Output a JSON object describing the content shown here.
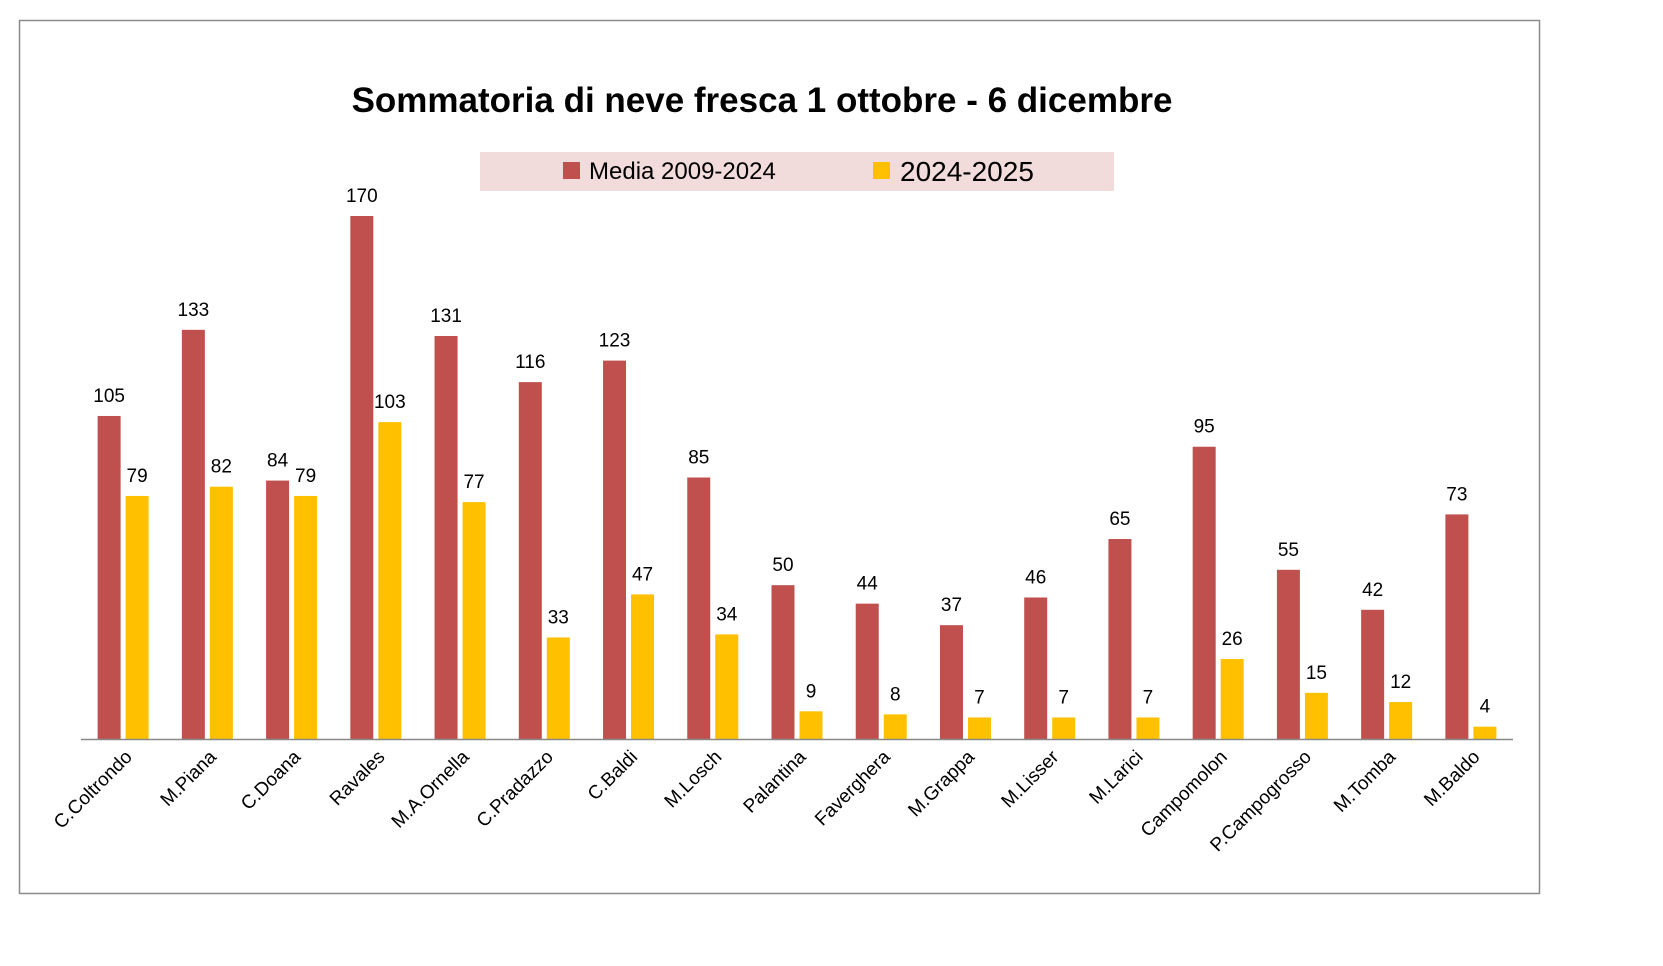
{
  "chart_data": {
    "type": "bar",
    "title": "Sommatoria di neve fresca 1 ottobre - 6 dicembre",
    "xlabel": "",
    "ylabel": "",
    "ylim": [
      0,
      170
    ],
    "grid": false,
    "legend_position": "top-center",
    "categories": [
      "C.Coltrondo",
      "M.Piana",
      "C.Doana",
      "Ravales",
      "M.A.Ornella",
      "C.Pradazzo",
      "C.Baldi",
      "M.Losch",
      "Palantina",
      "Faverghera",
      "M.Grappa",
      "M.Lisser",
      "M.Larici",
      "Campomolon",
      "P.Campogrosso",
      "M.Tomba",
      "M.Baldo"
    ],
    "series": [
      {
        "name": "Media 2009-2024",
        "color": "#c0504d",
        "values": [
          105,
          133,
          84,
          170,
          131,
          116,
          123,
          85,
          50,
          44,
          37,
          46,
          65,
          95,
          55,
          42,
          73
        ]
      },
      {
        "name": "2024-2025",
        "color": "#ffc000",
        "values": [
          79,
          82,
          79,
          103,
          77,
          33,
          47,
          34,
          9,
          8,
          7,
          7,
          7,
          26,
          15,
          12,
          4
        ]
      }
    ]
  }
}
